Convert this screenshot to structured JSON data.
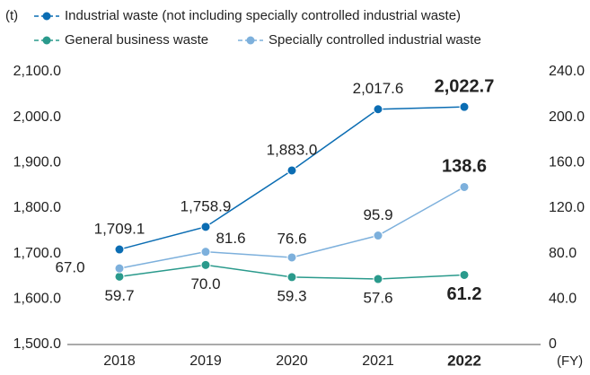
{
  "chart_data": {
    "type": "line",
    "y_unit": "(t)",
    "x_unit": "(FY)",
    "categories": [
      "2018",
      "2019",
      "2020",
      "2021",
      "2022"
    ],
    "series": [
      {
        "name": "Industrial waste (not including specially controlled industrial waste)",
        "color": "#0b6db3",
        "values": [
          1709.1,
          1758.9,
          1883.0,
          2017.6,
          2022.7
        ],
        "value_labels": [
          "1,709.1",
          "1,758.9",
          "1,883.0",
          "2,017.6",
          "2,022.7"
        ]
      },
      {
        "name": "General business waste",
        "color": "#2a9a8c",
        "axis": "y2",
        "values": [
          59.7,
          70.0,
          59.3,
          57.6,
          61.2
        ],
        "value_labels": [
          "59.7",
          "70.0",
          "59.3",
          "57.6",
          "61.2"
        ]
      },
      {
        "name": "Specially controlled industrial waste",
        "color": "#7db0dc",
        "axis": "y2",
        "values": [
          67.0,
          81.6,
          76.6,
          95.9,
          138.6
        ],
        "value_labels": [
          "67.0",
          "81.6",
          "76.6",
          "95.9",
          "138.6"
        ]
      }
    ],
    "ylim": [
      1500,
      2100
    ],
    "yticks": [
      {
        "value": 1500,
        "label": "1,500.0"
      },
      {
        "value": 1600,
        "label": "1,600.0"
      },
      {
        "value": 1700,
        "label": "1,700.0"
      },
      {
        "value": 1800,
        "label": "1,800.0"
      },
      {
        "value": 1900,
        "label": "1,900.0"
      },
      {
        "value": 2000,
        "label": "2,000.0"
      },
      {
        "value": 2100,
        "label": "2,100.0"
      }
    ],
    "y2lim": [
      0,
      240
    ],
    "y2ticks": [
      0,
      {
        "value": 40,
        "label": "40.0"
      },
      {
        "value": 80,
        "label": "80.0"
      },
      {
        "value": 120,
        "label": "120.0"
      },
      {
        "value": 160,
        "label": "160.0"
      },
      {
        "value": 200,
        "label": "200.0"
      },
      {
        "value": 240,
        "label": "240.0"
      }
    ]
  }
}
